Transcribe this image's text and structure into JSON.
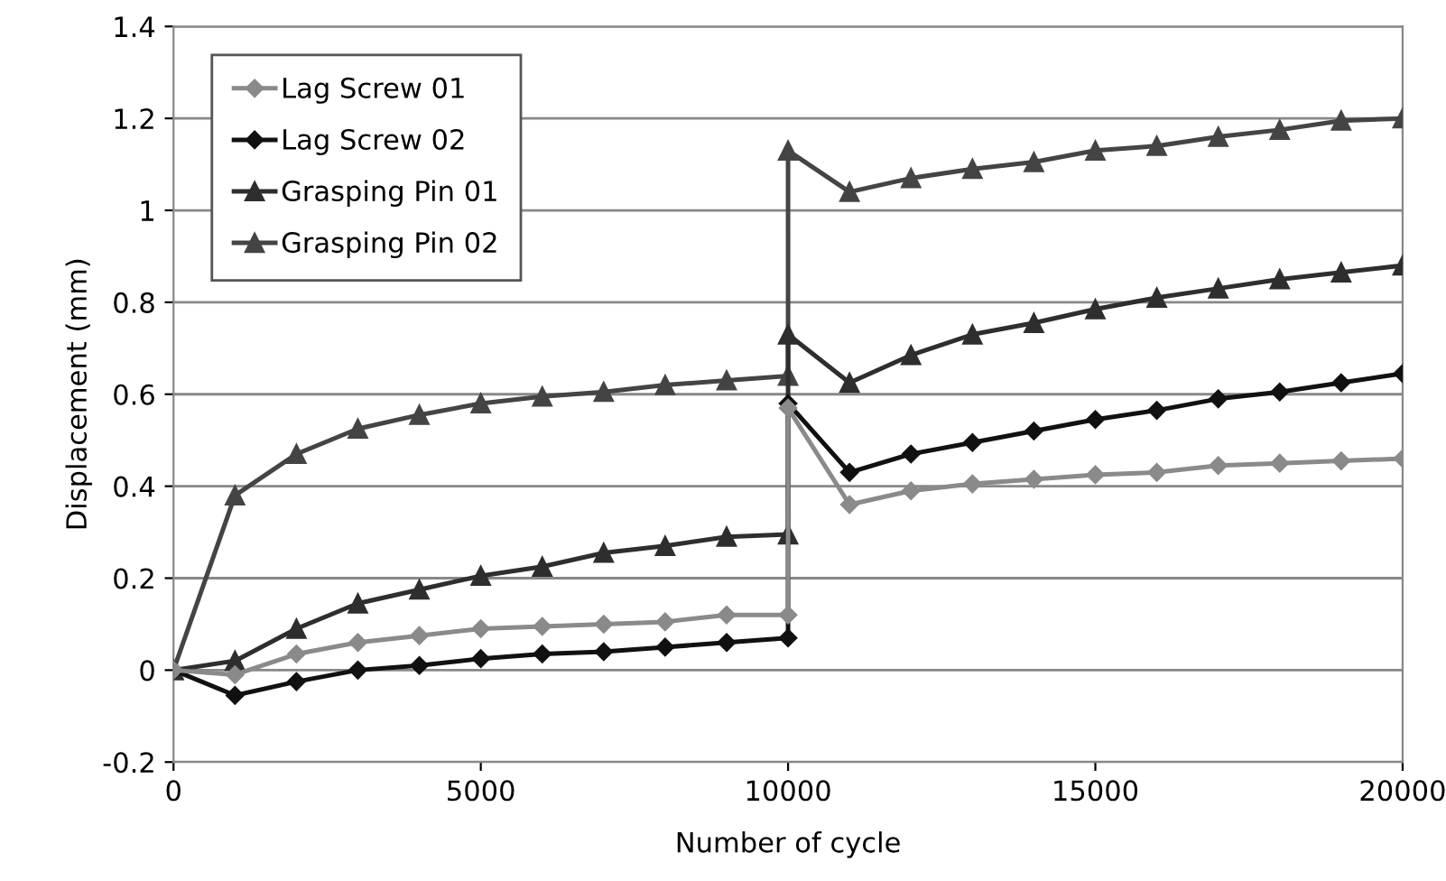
{
  "chart_data": {
    "type": "line",
    "xlabel": "Number of cycle",
    "ylabel": "Displacement (mm)",
    "x": [
      0,
      1000,
      2000,
      3000,
      4000,
      5000,
      6000,
      7000,
      8000,
      9000,
      10000,
      10000,
      11000,
      12000,
      13000,
      14000,
      15000,
      16000,
      17000,
      18000,
      19000,
      20000
    ],
    "series": [
      {
        "name": "Lag Screw 01",
        "color": "#8a8a8a",
        "marker": "diamond",
        "values": [
          0,
          -0.01,
          0.035,
          0.06,
          0.075,
          0.09,
          0.095,
          0.1,
          0.105,
          0.12,
          0.12,
          0.57,
          0.36,
          0.39,
          0.405,
          0.415,
          0.425,
          0.43,
          0.445,
          0.45,
          0.455,
          0.46
        ]
      },
      {
        "name": "Lag Screw 02",
        "color": "#111111",
        "marker": "diamond",
        "values": [
          0,
          -0.055,
          -0.025,
          0,
          0.01,
          0.025,
          0.035,
          0.04,
          0.05,
          0.06,
          0.07,
          0.58,
          0.43,
          0.47,
          0.495,
          0.52,
          0.545,
          0.565,
          0.59,
          0.605,
          0.625,
          0.645
        ]
      },
      {
        "name": "Grasping Pin 01",
        "color": "#2e2e2e",
        "marker": "triangle",
        "values": [
          0,
          0.02,
          0.09,
          0.145,
          0.175,
          0.205,
          0.225,
          0.255,
          0.27,
          0.29,
          0.295,
          0.73,
          0.625,
          0.685,
          0.73,
          0.755,
          0.785,
          0.81,
          0.83,
          0.85,
          0.865,
          0.88
        ]
      },
      {
        "name": "Grasping Pin 02",
        "color": "#444444",
        "marker": "triangle",
        "values": [
          0,
          0.38,
          0.47,
          0.525,
          0.555,
          0.58,
          0.595,
          0.605,
          0.62,
          0.63,
          0.64,
          1.13,
          1.04,
          1.07,
          1.09,
          1.105,
          1.13,
          1.14,
          1.16,
          1.175,
          1.195,
          1.2
        ]
      }
    ],
    "xlim": [
      0,
      20000
    ],
    "xticks": [
      0,
      5000,
      10000,
      15000,
      20000
    ],
    "ylim": [
      -0.2,
      1.4
    ],
    "yticks": [
      -0.2,
      0,
      0.2,
      0.4,
      0.6,
      0.8,
      1,
      1.2,
      1.4
    ],
    "grid": "y",
    "legend": "top left"
  }
}
